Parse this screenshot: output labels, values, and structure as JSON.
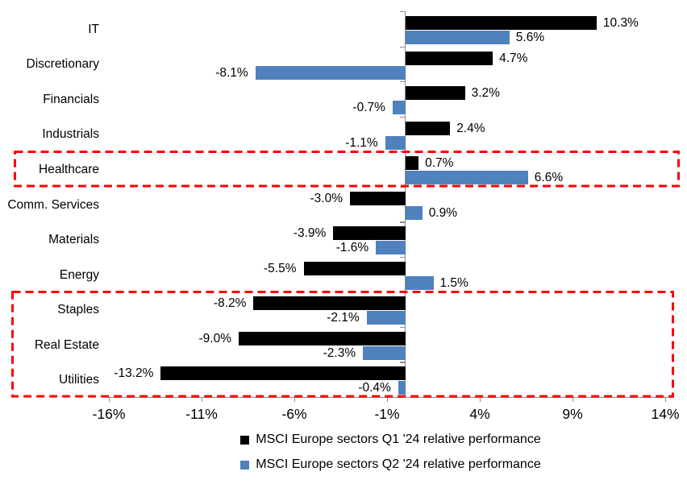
{
  "chart_data": {
    "type": "bar",
    "orientation": "horizontal",
    "categories": [
      "IT",
      "Discretionary",
      "Financials",
      "Industrials",
      "Healthcare",
      "Comm. Services",
      "Materials",
      "Energy",
      "Staples",
      "Real Estate",
      "Utilities"
    ],
    "series": [
      {
        "name": "MSCI Europe sectors Q1 '24 relative performance",
        "color": "#000000",
        "values": [
          10.3,
          4.7,
          3.2,
          2.4,
          0.7,
          -3.0,
          -3.9,
          -5.5,
          -8.2,
          -9.0,
          -13.2
        ],
        "labels": [
          "10.3%",
          "4.7%",
          "3.2%",
          "2.4%",
          "0.7%",
          "-3.0%",
          "-3.9%",
          "-5.5%",
          "-8.2%",
          "-9.0%",
          "-13.2%"
        ]
      },
      {
        "name": "MSCI Europe sectors Q2 '24 relative performance",
        "color": "#4F81BD",
        "values": [
          5.6,
          -8.1,
          -0.7,
          -1.1,
          6.6,
          0.9,
          -1.6,
          1.5,
          -2.1,
          -2.3,
          -0.4
        ],
        "labels": [
          "5.6%",
          "-8.1%",
          "-0.7%",
          "-1.1%",
          "6.6%",
          "0.9%",
          "-1.6%",
          "1.5%",
          "-2.1%",
          "-2.3%",
          "-0.4%"
        ]
      }
    ],
    "x_axis": {
      "ticks": [
        {
          "value": -16,
          "label": "-16%"
        },
        {
          "value": -11,
          "label": "-11%"
        },
        {
          "value": -6,
          "label": "-6%"
        },
        {
          "value": -1,
          "label": "-1%"
        },
        {
          "value": 4,
          "label": "4%"
        },
        {
          "value": 9,
          "label": "9%"
        },
        {
          "value": 14,
          "label": "14%"
        }
      ],
      "range": [
        -16,
        14
      ]
    },
    "axis_color": "#8C8C8C",
    "grid": false,
    "legend_position": "bottom",
    "highlight_boxes": [
      {
        "color": "#FF0000",
        "categories": [
          "Healthcare"
        ]
      },
      {
        "color": "#FF0000",
        "categories": [
          "Staples",
          "Real Estate",
          "Utilities"
        ]
      }
    ]
  }
}
